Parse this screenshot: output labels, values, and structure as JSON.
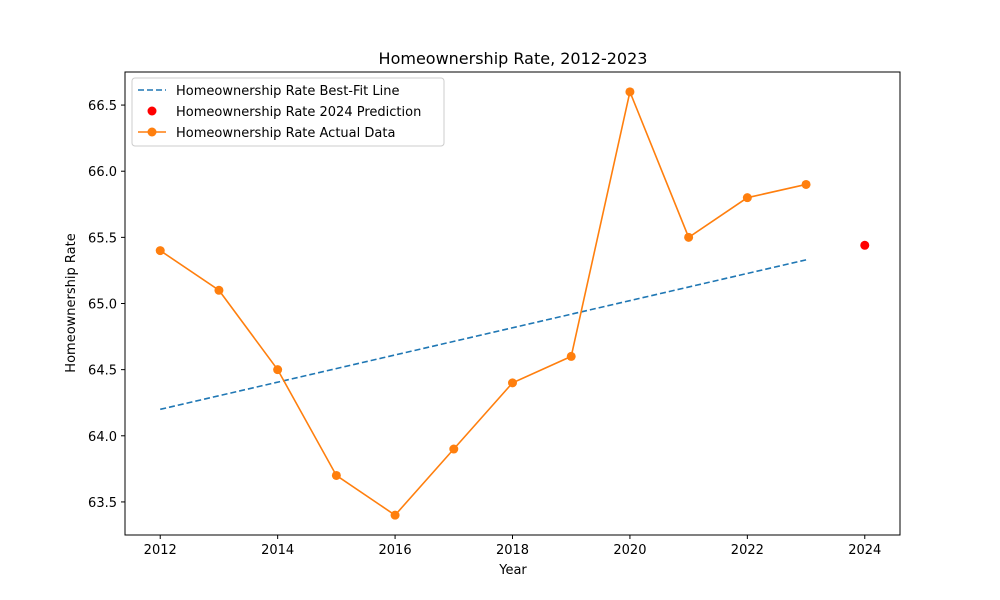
{
  "chart_data": {
    "type": "line",
    "title": "Homeownership Rate, 2012-2023",
    "xlabel": "Year",
    "ylabel": "Homeownership Rate",
    "xlim": [
      2011.4,
      2024.6
    ],
    "ylim": [
      63.25,
      66.75
    ],
    "x_ticks": [
      2012,
      2014,
      2016,
      2018,
      2020,
      2022,
      2024
    ],
    "y_ticks": [
      63.5,
      64.0,
      64.5,
      65.0,
      65.5,
      66.0,
      66.5
    ],
    "y_tick_labels": [
      "63.5",
      "64.0",
      "64.5",
      "65.0",
      "65.5",
      "66.0",
      "66.5"
    ],
    "grid": false,
    "legend_position": "top-left",
    "series": [
      {
        "name": "Homeownership Rate Best-Fit Line",
        "style": "dashed-line",
        "color": "#1f77b4",
        "x": [
          2012,
          2023
        ],
        "y": [
          64.2,
          65.33
        ]
      },
      {
        "name": "Homeownership Rate 2024 Prediction",
        "style": "scatter",
        "color": "#ff0000",
        "x": [
          2024
        ],
        "y": [
          65.44
        ]
      },
      {
        "name": "Homeownership Rate Actual Data",
        "style": "line-markers",
        "color": "#ff7f0e",
        "x": [
          2012,
          2013,
          2014,
          2015,
          2016,
          2017,
          2018,
          2019,
          2020,
          2021,
          2022,
          2023
        ],
        "y": [
          65.4,
          65.1,
          64.5,
          63.7,
          63.4,
          63.9,
          64.4,
          64.6,
          66.6,
          65.5,
          65.8,
          65.9
        ]
      }
    ]
  }
}
